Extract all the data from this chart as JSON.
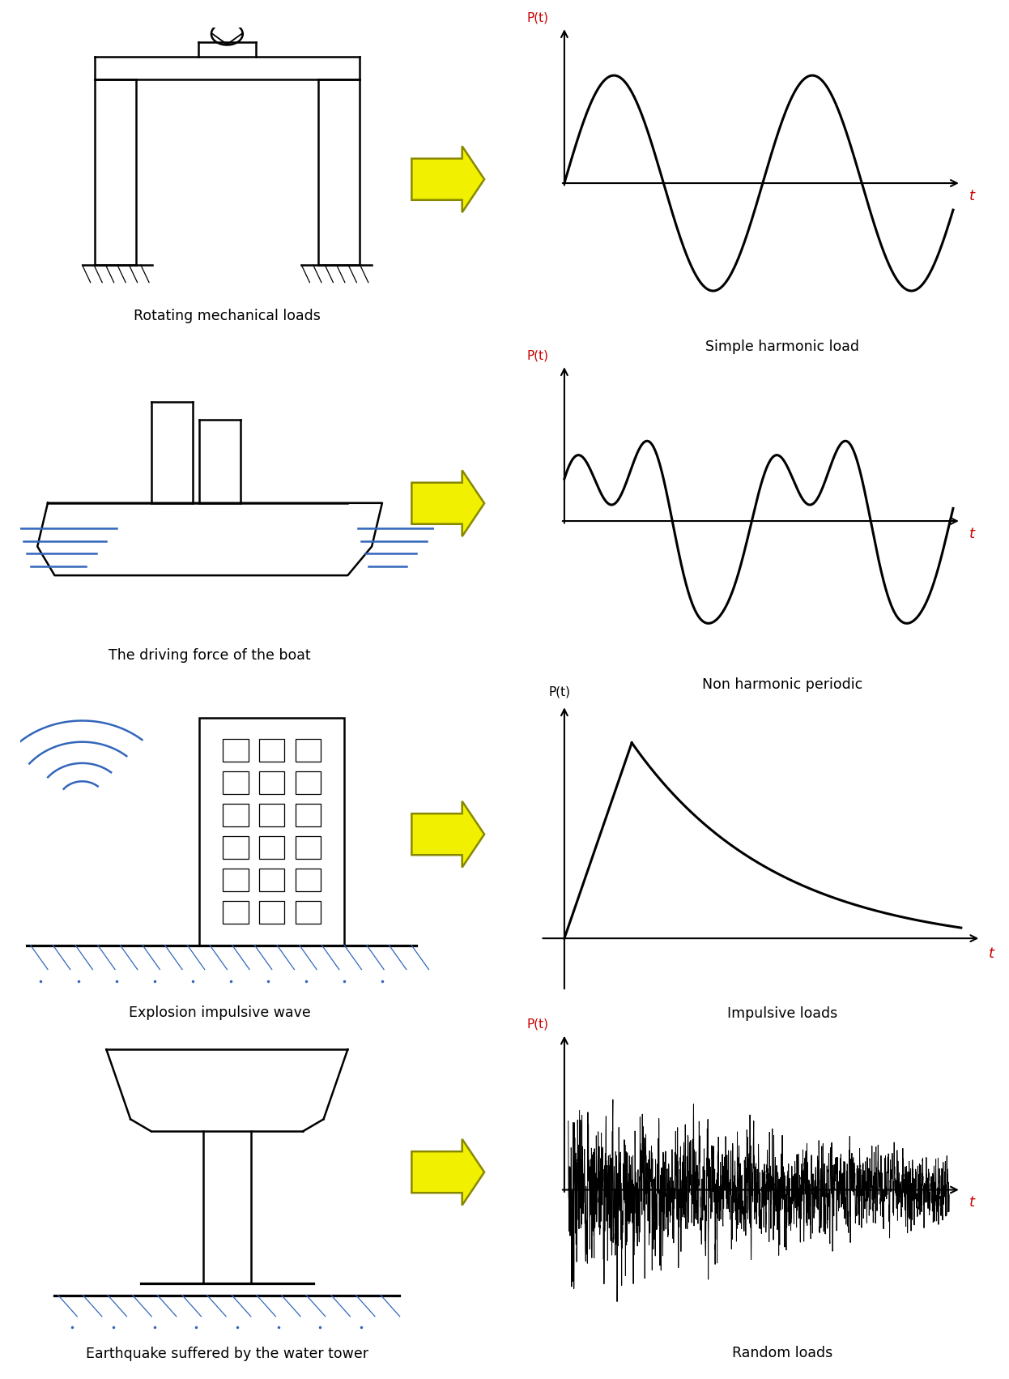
{
  "bg_color": "#ffffff",
  "arrow_fc": "#f0f000",
  "arrow_ec": "#888800",
  "axis_color": "#000000",
  "label_color": "#cc0000",
  "curve_color": "#000000",
  "text_color": "#000000",
  "blue_color": "#3366bb",
  "lw_main": 1.8,
  "row_labels_left": [
    "Rotating mechanical loads",
    "The driving force of the boat",
    "Explosion impulsive wave",
    "Earthquake suffered by the water tower"
  ],
  "row_labels_right": [
    "Simple harmonic load",
    "Non harmonic periodic",
    "Impulsive loads",
    "Random loads"
  ],
  "pt_label": "P(t)",
  "t_label": "t"
}
